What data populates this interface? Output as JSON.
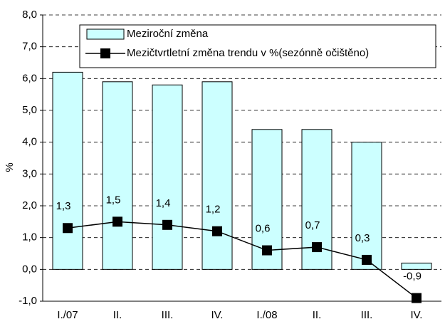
{
  "chart_data": {
    "type": "bar",
    "y_label": "%",
    "categories": [
      "I./07",
      "II.",
      "III.",
      "IV.",
      "I./08",
      "II.",
      "III.",
      "IV."
    ],
    "series": [
      {
        "name": "Meziroční změna",
        "type": "bar",
        "color": "#ccffff",
        "values": [
          6.2,
          5.9,
          5.8,
          5.9,
          4.4,
          4.4,
          4.0,
          0.2
        ]
      },
      {
        "name": "Mezičtvrtletní změna trendu v %(sezónně očištěno)",
        "type": "line",
        "color": "#000000",
        "values": [
          1.3,
          1.5,
          1.4,
          1.2,
          0.6,
          0.7,
          0.3,
          -0.9
        ],
        "value_labels": [
          "1,3",
          "1,5",
          "1,4",
          "1,2",
          "0,6",
          "0,7",
          "0,3",
          "-0,9"
        ]
      }
    ],
    "ylim": [
      -1,
      8
    ],
    "yticks": [
      {
        "value": -1,
        "label": "-1,0"
      },
      {
        "value": 0,
        "label": "0,0"
      },
      {
        "value": 1,
        "label": "1,0"
      },
      {
        "value": 2,
        "label": "2,0"
      },
      {
        "value": 3,
        "label": "3,0"
      },
      {
        "value": 4,
        "label": "4,0"
      },
      {
        "value": 5,
        "label": "5,0"
      },
      {
        "value": 6,
        "label": "6,0"
      },
      {
        "value": 7,
        "label": "7,0"
      },
      {
        "value": 8,
        "label": "8,0"
      }
    ],
    "grid": true
  }
}
